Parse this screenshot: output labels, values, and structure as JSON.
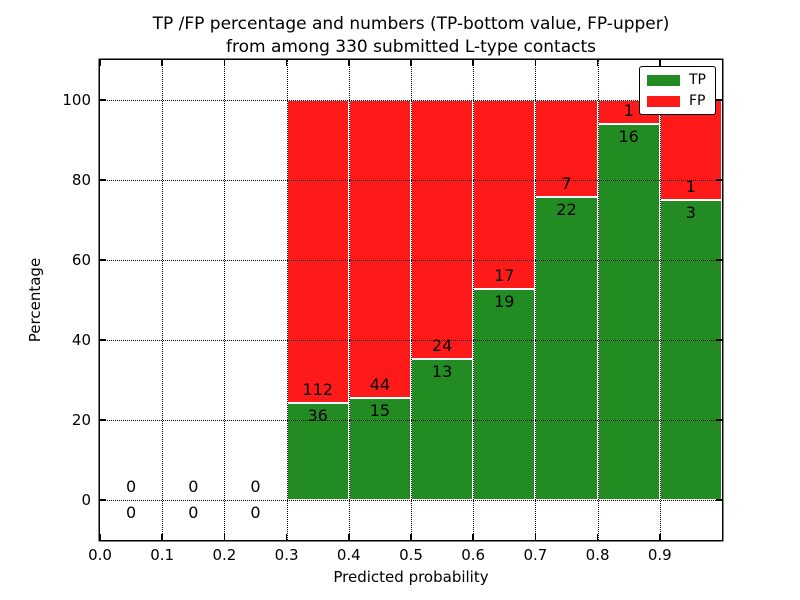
{
  "figure": {
    "title_line1": "TP /FP percentage and numbers (TP-bottom value, FP-upper)",
    "title_line2": "from among 330 submitted L-type contacts"
  },
  "chart_data": {
    "type": "bar",
    "stacked": true,
    "description": "Stacked percentage bars per predicted-probability bin; each non-empty bin totals 100%. Annotations are raw counts: TP count below the TP/FP boundary, FP count above it. Bins 0.0-0.3 are empty (0/0).",
    "total_contacts": 330,
    "title": "TP /FP percentage and numbers (TP-bottom value, FP-upper) from among 330 submitted L-type contacts",
    "xlabel": "Predicted probability",
    "ylabel": "Percentage",
    "xlim": [
      0,
      1
    ],
    "ylim": [
      -10,
      110
    ],
    "bin_start": [
      0.0,
      0.1,
      0.2,
      0.3,
      0.4,
      0.5,
      0.6,
      0.7,
      0.8,
      0.9
    ],
    "bin_width": 0.1,
    "series": [
      {
        "name": "TP",
        "color": "#228b22",
        "counts": [
          0,
          0,
          0,
          36,
          15,
          13,
          19,
          22,
          16,
          3
        ]
      },
      {
        "name": "FP",
        "color": "#ff1a1a",
        "counts": [
          0,
          0,
          0,
          112,
          44,
          24,
          17,
          7,
          1,
          1
        ]
      }
    ],
    "tp_percent_by_bin": [
      null,
      null,
      null,
      24.3,
      25.4,
      35.1,
      52.8,
      75.9,
      94.1,
      75.0
    ],
    "xtick_labels": [
      "0.0",
      "0.1",
      "0.2",
      "0.3",
      "0.4",
      "0.5",
      "0.6",
      "0.7",
      "0.8",
      "0.9"
    ],
    "ytick_values": [
      0,
      20,
      40,
      60,
      80,
      100
    ],
    "ytick_labels": [
      "0",
      "20",
      "40",
      "60",
      "80",
      "100"
    ],
    "grid": "dotted, drawn above bars",
    "bar_edge_color": "#ffffff",
    "legend": {
      "position": "upper right",
      "entries": [
        {
          "label": "TP",
          "color": "#228b22"
        },
        {
          "label": "FP",
          "color": "#ff1a1a"
        }
      ]
    }
  }
}
